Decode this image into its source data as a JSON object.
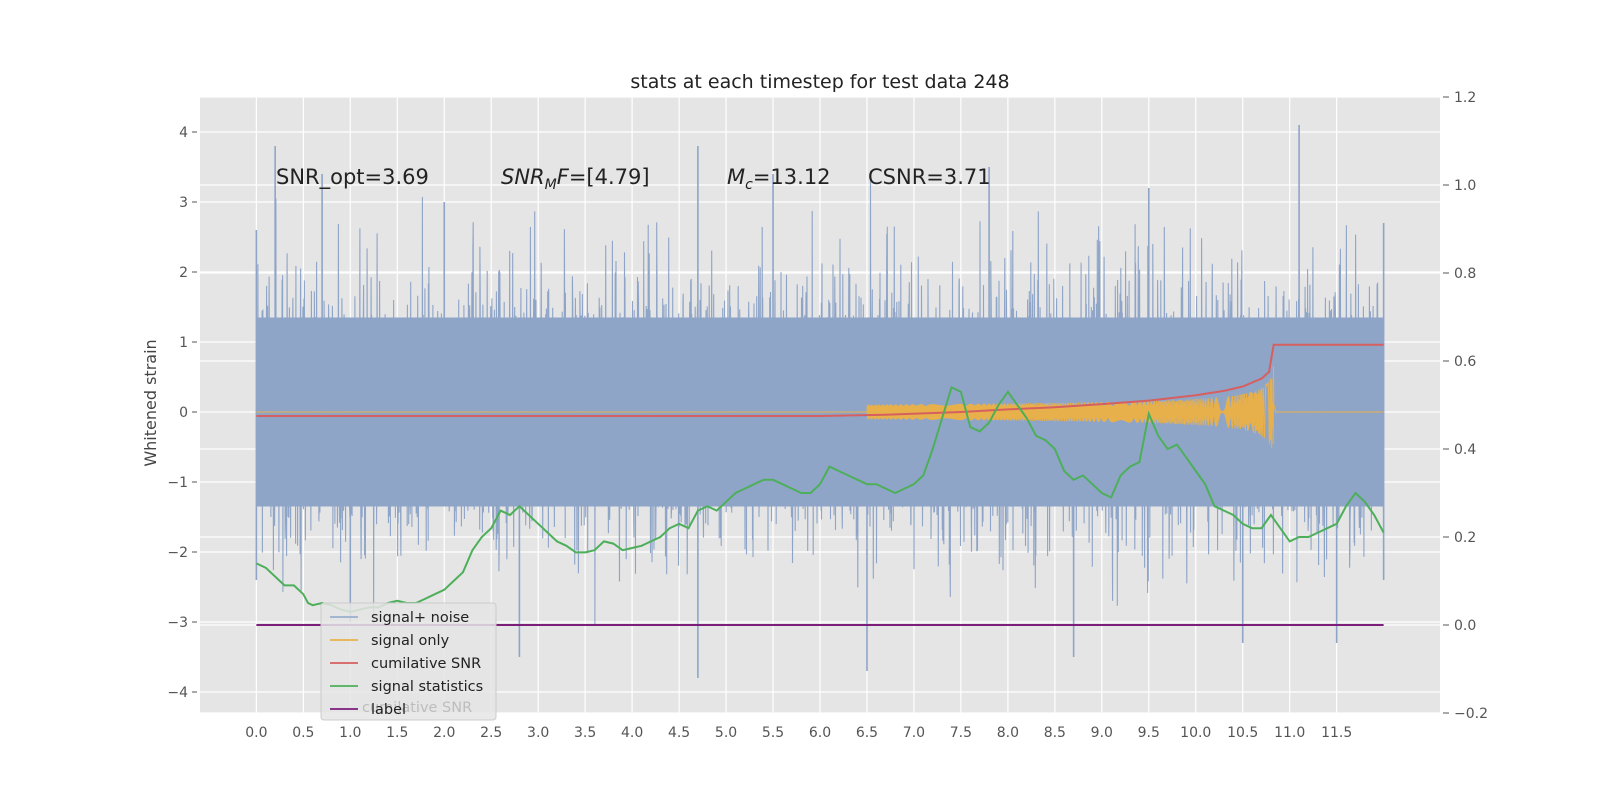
{
  "chart_data": {
    "type": "line",
    "title": "stats at each timestep for test data 248",
    "ylabel": "Whitened strain",
    "xlim": [
      -0.6,
      12.6
    ],
    "ylim": [
      -4.3,
      4.5
    ],
    "y2lim": [
      -0.2,
      1.2
    ],
    "xticks": [
      0.0,
      0.5,
      1.0,
      1.5,
      2.0,
      2.5,
      3.0,
      3.5,
      4.0,
      4.5,
      5.0,
      5.5,
      6.0,
      6.5,
      7.0,
      7.5,
      8.0,
      8.5,
      9.0,
      9.5,
      10.0,
      10.5,
      11.0,
      11.5
    ],
    "xtick_labels": [
      "0.0",
      "0.5",
      "1.0",
      "1.5",
      "2.0",
      "2.5",
      "3.0",
      "3.5",
      "4.0",
      "4.5",
      "5.0",
      "5.5",
      "6.0",
      "6.5",
      "7.0",
      "7.5",
      "8.0",
      "8.5",
      "9.0",
      "9.5",
      "10.0",
      "10.5",
      "11.0",
      "11.5"
    ],
    "yticks": [
      -4,
      -3,
      -2,
      -1,
      0,
      1,
      2,
      3,
      4
    ],
    "ytick_labels": [
      "−4",
      "−3",
      "−2",
      "−1",
      "0",
      "1",
      "2",
      "3",
      "4"
    ],
    "y2ticks": [
      -0.2,
      0.0,
      0.2,
      0.4,
      0.6,
      0.8,
      1.0,
      1.2
    ],
    "y2tick_labels": [
      "−0.2",
      "0.0",
      "0.2",
      "0.4",
      "0.6",
      "0.8",
      "1.0",
      "1.2"
    ],
    "grid": true,
    "legend_position": "lower-left",
    "annotations": {
      "snr_opt": "SNR_opt=3.69",
      "snr_mf_main": "SNR",
      "snr_mf_sub": "M",
      "snr_mf_rest": "F=[4.79]",
      "mc_main": "M",
      "mc_sub": "c",
      "mc_rest": "=13.12",
      "csnr": "CSNR=3.71"
    },
    "series": [
      {
        "name": "signal+ noise",
        "axis": "left",
        "color": "#8fa5c8",
        "style": "dense noise trace, x 0.0–12.0",
        "t_range": [
          0.0,
          12.0
        ],
        "envelope_upper": [
          [
            0.0,
            2.6
          ],
          [
            0.2,
            3.8
          ],
          [
            0.7,
            3.4
          ],
          [
            2.0,
            3.0
          ],
          [
            4.7,
            3.8
          ],
          [
            5.5,
            3.4
          ],
          [
            7.8,
            3.5
          ],
          [
            9.5,
            3.2
          ],
          [
            11.1,
            4.1
          ],
          [
            12.0,
            2.7
          ]
        ],
        "envelope_lower": [
          [
            0.0,
            -2.4
          ],
          [
            1.0,
            -3.0
          ],
          [
            2.8,
            -3.5
          ],
          [
            4.7,
            -3.8
          ],
          [
            6.5,
            -3.7
          ],
          [
            8.7,
            -3.5
          ],
          [
            10.5,
            -3.3
          ],
          [
            11.5,
            -3.3
          ],
          [
            12.0,
            -2.4
          ]
        ]
      },
      {
        "name": "signal only",
        "axis": "left",
        "color": "#e8b04a",
        "style": "chirp",
        "t_start": 6.5,
        "t_merger": 10.83,
        "peak_amplitude": 0.7,
        "t_end": 12.0
      },
      {
        "name": "cumilative SNR",
        "axis": "right",
        "color": "#d65f5f",
        "points": [
          [
            0.0,
            0.475
          ],
          [
            6.0,
            0.475
          ],
          [
            6.7,
            0.478
          ],
          [
            7.5,
            0.484
          ],
          [
            8.0,
            0.49
          ],
          [
            8.5,
            0.495
          ],
          [
            9.0,
            0.502
          ],
          [
            9.5,
            0.51
          ],
          [
            10.0,
            0.522
          ],
          [
            10.3,
            0.532
          ],
          [
            10.5,
            0.542
          ],
          [
            10.7,
            0.56
          ],
          [
            10.78,
            0.575
          ],
          [
            10.83,
            0.637
          ],
          [
            12.0,
            0.637
          ]
        ]
      },
      {
        "name": "signal statistics",
        "axis": "right",
        "color": "#4daf5a",
        "points": [
          [
            0.0,
            0.14
          ],
          [
            0.1,
            0.13
          ],
          [
            0.2,
            0.11
          ],
          [
            0.3,
            0.09
          ],
          [
            0.4,
            0.09
          ],
          [
            0.5,
            0.07
          ],
          [
            0.55,
            0.05
          ],
          [
            0.6,
            0.045
          ],
          [
            0.7,
            0.05
          ],
          [
            0.8,
            0.045
          ],
          [
            0.9,
            0.035
          ],
          [
            1.0,
            0.03
          ],
          [
            1.1,
            0.035
          ],
          [
            1.2,
            0.04
          ],
          [
            1.3,
            0.04
          ],
          [
            1.4,
            0.05
          ],
          [
            1.5,
            0.055
          ],
          [
            1.6,
            0.05
          ],
          [
            1.7,
            0.05
          ],
          [
            1.8,
            0.06
          ],
          [
            1.9,
            0.07
          ],
          [
            2.0,
            0.08
          ],
          [
            2.1,
            0.1
          ],
          [
            2.2,
            0.12
          ],
          [
            2.3,
            0.17
          ],
          [
            2.4,
            0.2
          ],
          [
            2.5,
            0.22
          ],
          [
            2.6,
            0.26
          ],
          [
            2.7,
            0.25
          ],
          [
            2.8,
            0.27
          ],
          [
            2.9,
            0.25
          ],
          [
            3.0,
            0.23
          ],
          [
            3.1,
            0.21
          ],
          [
            3.2,
            0.19
          ],
          [
            3.3,
            0.18
          ],
          [
            3.4,
            0.165
          ],
          [
            3.5,
            0.165
          ],
          [
            3.6,
            0.17
          ],
          [
            3.7,
            0.19
          ],
          [
            3.8,
            0.185
          ],
          [
            3.9,
            0.17
          ],
          [
            4.0,
            0.175
          ],
          [
            4.1,
            0.18
          ],
          [
            4.2,
            0.19
          ],
          [
            4.3,
            0.2
          ],
          [
            4.4,
            0.22
          ],
          [
            4.5,
            0.23
          ],
          [
            4.6,
            0.22
          ],
          [
            4.7,
            0.26
          ],
          [
            4.8,
            0.27
          ],
          [
            4.9,
            0.26
          ],
          [
            5.0,
            0.28
          ],
          [
            5.1,
            0.3
          ],
          [
            5.2,
            0.31
          ],
          [
            5.3,
            0.32
          ],
          [
            5.4,
            0.33
          ],
          [
            5.5,
            0.33
          ],
          [
            5.6,
            0.32
          ],
          [
            5.7,
            0.31
          ],
          [
            5.8,
            0.3
          ],
          [
            5.9,
            0.3
          ],
          [
            6.0,
            0.32
          ],
          [
            6.1,
            0.36
          ],
          [
            6.2,
            0.35
          ],
          [
            6.3,
            0.34
          ],
          [
            6.4,
            0.33
          ],
          [
            6.5,
            0.32
          ],
          [
            6.6,
            0.32
          ],
          [
            6.7,
            0.31
          ],
          [
            6.8,
            0.3
          ],
          [
            6.9,
            0.31
          ],
          [
            7.0,
            0.32
          ],
          [
            7.1,
            0.34
          ],
          [
            7.2,
            0.4
          ],
          [
            7.3,
            0.47
          ],
          [
            7.4,
            0.54
          ],
          [
            7.5,
            0.53
          ],
          [
            7.6,
            0.45
          ],
          [
            7.7,
            0.44
          ],
          [
            7.8,
            0.46
          ],
          [
            7.9,
            0.5
          ],
          [
            8.0,
            0.53
          ],
          [
            8.1,
            0.5
          ],
          [
            8.2,
            0.47
          ],
          [
            8.3,
            0.43
          ],
          [
            8.4,
            0.42
          ],
          [
            8.5,
            0.4
          ],
          [
            8.6,
            0.35
          ],
          [
            8.7,
            0.33
          ],
          [
            8.8,
            0.34
          ],
          [
            8.9,
            0.32
          ],
          [
            9.0,
            0.3
          ],
          [
            9.1,
            0.29
          ],
          [
            9.2,
            0.34
          ],
          [
            9.3,
            0.36
          ],
          [
            9.4,
            0.37
          ],
          [
            9.5,
            0.48
          ],
          [
            9.6,
            0.43
          ],
          [
            9.7,
            0.4
          ],
          [
            9.8,
            0.41
          ],
          [
            9.9,
            0.38
          ],
          [
            10.0,
            0.35
          ],
          [
            10.1,
            0.32
          ],
          [
            10.2,
            0.27
          ],
          [
            10.3,
            0.26
          ],
          [
            10.4,
            0.25
          ],
          [
            10.5,
            0.23
          ],
          [
            10.6,
            0.22
          ],
          [
            10.7,
            0.22
          ],
          [
            10.8,
            0.25
          ],
          [
            10.9,
            0.22
          ],
          [
            11.0,
            0.19
          ],
          [
            11.1,
            0.2
          ],
          [
            11.2,
            0.2
          ],
          [
            11.3,
            0.21
          ],
          [
            11.4,
            0.22
          ],
          [
            11.5,
            0.23
          ],
          [
            11.6,
            0.27
          ],
          [
            11.7,
            0.3
          ],
          [
            11.8,
            0.28
          ],
          [
            11.9,
            0.25
          ],
          [
            12.0,
            0.21
          ]
        ]
      },
      {
        "name": "label",
        "axis": "right",
        "color": "#7a1e7a",
        "points": [
          [
            0.0,
            0.0
          ],
          [
            12.0,
            0.0
          ]
        ]
      }
    ],
    "legend_ghost_text": "cumilative SNR"
  }
}
